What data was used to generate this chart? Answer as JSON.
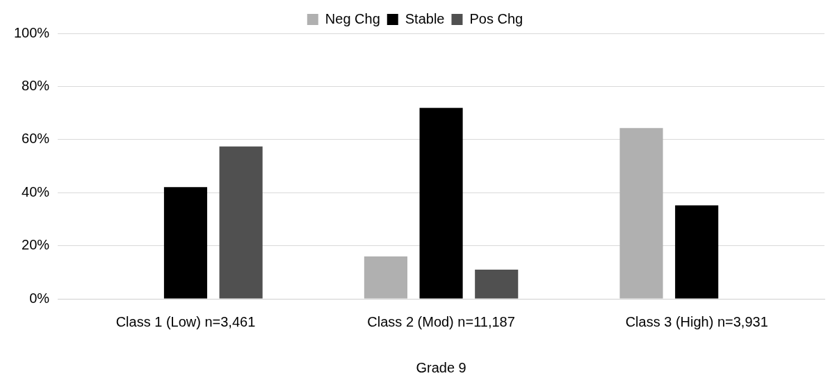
{
  "chart_data": {
    "type": "bar",
    "categories": [
      "Class 1 (Low) n=3,461",
      "Class 2 (Mod) n=11,187",
      "Class 3 (High) n=3,931"
    ],
    "xlabel": "Grade 9",
    "series": [
      {
        "name": "Neg Chg",
        "color": "#b0b0b0",
        "values": [
          null,
          16.0,
          64.3
        ]
      },
      {
        "name": "Stable",
        "color": "#000000",
        "values": [
          42.1,
          71.9,
          35.2
        ]
      },
      {
        "name": "Pos Chg",
        "color": "#505050",
        "values": [
          57.4,
          11.0,
          null
        ]
      }
    ],
    "ylim": [
      0,
      100
    ],
    "yticks": [
      {
        "value": 0,
        "label": "0%"
      },
      {
        "value": 20,
        "label": "20%"
      },
      {
        "value": 40,
        "label": "40%"
      },
      {
        "value": 60,
        "label": "60%"
      },
      {
        "value": 80,
        "label": "80%"
      },
      {
        "value": 100,
        "label": "100%"
      }
    ],
    "grid": "y",
    "legend": "top"
  }
}
